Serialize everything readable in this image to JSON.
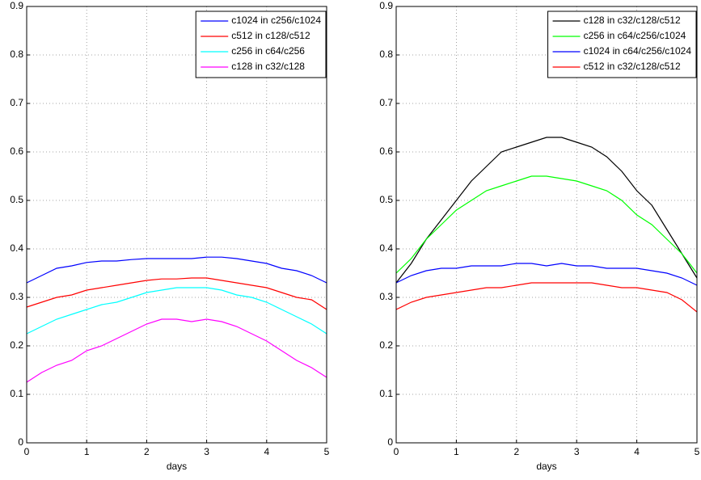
{
  "chart_data": [
    {
      "type": "line",
      "xlabel": "days",
      "grid": true,
      "legend": "upper right",
      "xlim": [
        0,
        5
      ],
      "ylim": [
        0,
        0.9
      ],
      "xticks": [
        0,
        1,
        2,
        3,
        4,
        5
      ],
      "yticks": [
        0,
        0.1,
        0.2,
        0.3,
        0.4,
        0.5,
        0.6,
        0.7,
        0.8,
        0.9
      ],
      "x": [
        0,
        0.25,
        0.5,
        0.75,
        1,
        1.25,
        1.5,
        1.75,
        2,
        2.25,
        2.5,
        2.75,
        3,
        3.25,
        3.5,
        3.75,
        4,
        4.25,
        4.5,
        4.75,
        5
      ],
      "series": [
        {
          "name": "c1024 in c256/c1024",
          "color": "#0000ff",
          "values": [
            0.33,
            0.345,
            0.36,
            0.365,
            0.372,
            0.375,
            0.375,
            0.378,
            0.38,
            0.38,
            0.38,
            0.38,
            0.383,
            0.383,
            0.38,
            0.375,
            0.37,
            0.36,
            0.355,
            0.345,
            0.33
          ]
        },
        {
          "name": "c512 in c128/c512",
          "color": "#ff0000",
          "values": [
            0.28,
            0.29,
            0.3,
            0.305,
            0.315,
            0.32,
            0.325,
            0.33,
            0.335,
            0.338,
            0.338,
            0.34,
            0.34,
            0.335,
            0.33,
            0.325,
            0.32,
            0.31,
            0.3,
            0.295,
            0.275
          ]
        },
        {
          "name": "c256 in c64/c256",
          "color": "#00ffff",
          "values": [
            0.225,
            0.24,
            0.255,
            0.265,
            0.275,
            0.285,
            0.29,
            0.3,
            0.31,
            0.315,
            0.32,
            0.32,
            0.32,
            0.315,
            0.305,
            0.3,
            0.29,
            0.275,
            0.26,
            0.245,
            0.225
          ]
        },
        {
          "name": "c128 in c32/c128",
          "color": "#ff00ff",
          "values": [
            0.125,
            0.145,
            0.16,
            0.17,
            0.19,
            0.2,
            0.215,
            0.23,
            0.245,
            0.255,
            0.255,
            0.25,
            0.255,
            0.25,
            0.24,
            0.225,
            0.21,
            0.19,
            0.17,
            0.155,
            0.135
          ]
        }
      ]
    },
    {
      "type": "line",
      "xlabel": "days",
      "grid": true,
      "legend": "upper right",
      "xlim": [
        0,
        5
      ],
      "ylim": [
        0,
        0.9
      ],
      "xticks": [
        0,
        1,
        2,
        3,
        4,
        5
      ],
      "yticks": [
        0,
        0.1,
        0.2,
        0.3,
        0.4,
        0.5,
        0.6,
        0.7,
        0.8,
        0.9
      ],
      "x": [
        0,
        0.25,
        0.5,
        0.75,
        1,
        1.25,
        1.5,
        1.75,
        2,
        2.25,
        2.5,
        2.75,
        3,
        3.25,
        3.5,
        3.75,
        4,
        4.25,
        4.5,
        4.75,
        5
      ],
      "series": [
        {
          "name": "c128 in c32/c128/c512",
          "color": "#000000",
          "values": [
            0.33,
            0.37,
            0.42,
            0.46,
            0.5,
            0.54,
            0.57,
            0.6,
            0.61,
            0.62,
            0.63,
            0.63,
            0.62,
            0.61,
            0.59,
            0.56,
            0.52,
            0.49,
            0.44,
            0.39,
            0.34
          ]
        },
        {
          "name": "c256 in c64/c256/c1024",
          "color": "#00ff00",
          "values": [
            0.35,
            0.38,
            0.42,
            0.45,
            0.48,
            0.5,
            0.52,
            0.53,
            0.54,
            0.55,
            0.55,
            0.545,
            0.54,
            0.53,
            0.52,
            0.5,
            0.47,
            0.45,
            0.42,
            0.39,
            0.35
          ]
        },
        {
          "name": "c1024 in c64/c256/c1024",
          "color": "#0000ff",
          "values": [
            0.33,
            0.345,
            0.355,
            0.36,
            0.36,
            0.365,
            0.365,
            0.365,
            0.37,
            0.37,
            0.365,
            0.37,
            0.365,
            0.365,
            0.36,
            0.36,
            0.36,
            0.355,
            0.35,
            0.34,
            0.325
          ]
        },
        {
          "name": "c512 in c32/c128/c512",
          "color": "#ff0000",
          "values": [
            0.275,
            0.29,
            0.3,
            0.305,
            0.31,
            0.315,
            0.32,
            0.32,
            0.325,
            0.33,
            0.33,
            0.33,
            0.33,
            0.33,
            0.325,
            0.32,
            0.32,
            0.315,
            0.31,
            0.295,
            0.27
          ]
        }
      ]
    }
  ]
}
